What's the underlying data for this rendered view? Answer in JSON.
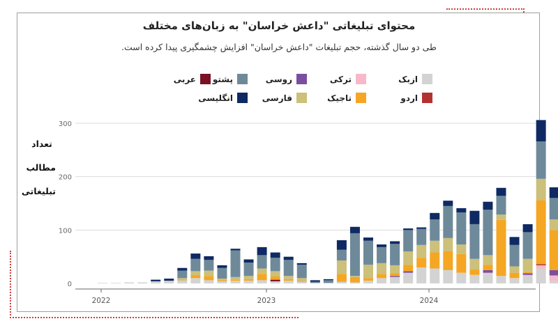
{
  "title": "محتوای تبلیغاتی \"داعش خراسان\" به زبان‌های مختلف",
  "subtitle": "طی دو سال گذشته، حجم تبلیغات \"داعش خراسان\" افزایش چشمگیری پیدا کرده است.",
  "ylabel_lines": [
    "تعداد",
    "مطالب",
    "تبلیغاتی"
  ],
  "legend": [
    {
      "label": "ازبک",
      "color": "#d3d3d3"
    },
    {
      "label": "ترکی",
      "color": "#f7b9c9"
    },
    {
      "label": "روسی",
      "color": "#7b4fa0"
    },
    {
      "label": "پشتو",
      "color": "#6e8a9a"
    },
    {
      "label": "عربی",
      "color": "#7a1124"
    },
    {
      "label": "اردو",
      "color": "#b3322f"
    },
    {
      "label": "تاجیک",
      "color": "#f5a623"
    },
    {
      "label": "فارسی",
      "color": "#ccc07a"
    },
    {
      "label": "انگلیسی",
      "color": "#0f2a63"
    }
  ],
  "chart_data": {
    "type": "bar",
    "stacked": true,
    "x_tick_labels": [
      "2022",
      "2023",
      "2024"
    ],
    "y_ticks": [
      0,
      100,
      200,
      300
    ],
    "ylim": [
      0,
      300
    ],
    "grid": true,
    "series": [
      {
        "name": "ازبک",
        "color": "#d3d3d3",
        "values": [
          1,
          1,
          2,
          2,
          4,
          5,
          5,
          10,
          6,
          4,
          5,
          5,
          6,
          4,
          5,
          3,
          1,
          1,
          3,
          2,
          5,
          10,
          12,
          20,
          30,
          28,
          25,
          20,
          16,
          18,
          14,
          10,
          14,
          28,
          5
        ]
      },
      {
        "name": "ترکی",
        "color": "#f7b9c9",
        "values": [
          0,
          0,
          0,
          0,
          0,
          0,
          0,
          0,
          0,
          0,
          0,
          0,
          0,
          0,
          0,
          0,
          0,
          0,
          0,
          0,
          0,
          0,
          0,
          0,
          0,
          0,
          0,
          0,
          0,
          2,
          0,
          0,
          2,
          6,
          10
        ]
      },
      {
        "name": "روسی",
        "color": "#7b4fa0",
        "values": [
          0,
          0,
          0,
          0,
          0,
          0,
          0,
          0,
          0,
          0,
          0,
          0,
          0,
          0,
          0,
          0,
          0,
          0,
          0,
          0,
          0,
          0,
          2,
          3,
          0,
          0,
          0,
          0,
          0,
          5,
          0,
          0,
          3,
          0,
          10
        ]
      },
      {
        "name": "عربی",
        "color": "#7a1124",
        "values": [
          0,
          0,
          0,
          0,
          0,
          0,
          0,
          0,
          0,
          0,
          0,
          0,
          0,
          3,
          0,
          0,
          0,
          0,
          0,
          0,
          0,
          0,
          0,
          0,
          0,
          0,
          0,
          0,
          0,
          0,
          0,
          0,
          0,
          0,
          0
        ]
      },
      {
        "name": "اردو",
        "color": "#b3322f",
        "values": [
          0,
          0,
          0,
          0,
          0,
          0,
          0,
          0,
          0,
          0,
          0,
          0,
          0,
          0,
          0,
          0,
          0,
          0,
          0,
          0,
          0,
          0,
          0,
          0,
          0,
          0,
          0,
          0,
          0,
          0,
          0,
          0,
          0,
          2,
          0
        ]
      },
      {
        "name": "تاجیک",
        "color": "#f5a623",
        "values": [
          0,
          0,
          0,
          0,
          0,
          0,
          0,
          5,
          8,
          2,
          2,
          3,
          12,
          6,
          3,
          2,
          0,
          0,
          15,
          10,
          5,
          8,
          5,
          12,
          18,
          30,
          35,
          35,
          10,
          10,
          105,
          10,
          2,
          120,
          75
        ]
      },
      {
        "name": "فارسی",
        "color": "#ccc07a",
        "values": [
          0,
          0,
          0,
          0,
          0,
          0,
          5,
          8,
          10,
          3,
          5,
          6,
          10,
          10,
          6,
          5,
          0,
          0,
          25,
          2,
          25,
          20,
          15,
          25,
          24,
          22,
          25,
          18,
          20,
          18,
          10,
          12,
          25,
          40,
          20
        ]
      },
      {
        "name": "پشتو",
        "color": "#6e8a9a",
        "values": [
          0,
          0,
          0,
          0,
          0,
          0,
          14,
          23,
          20,
          20,
          50,
          25,
          25,
          25,
          30,
          25,
          2,
          5,
          20,
          80,
          45,
          30,
          40,
          40,
          30,
          40,
          60,
          60,
          65,
          85,
          35,
          40,
          50,
          70,
          40
        ]
      },
      {
        "name": "انگلیسی",
        "color": "#0f2a63",
        "values": [
          0,
          0,
          0,
          0,
          3,
          4,
          5,
          10,
          7,
          5,
          3,
          6,
          15,
          10,
          6,
          3,
          3,
          2,
          18,
          12,
          6,
          5,
          5,
          3,
          3,
          12,
          10,
          8,
          25,
          15,
          15,
          15,
          15,
          40,
          20
        ]
      }
    ]
  }
}
